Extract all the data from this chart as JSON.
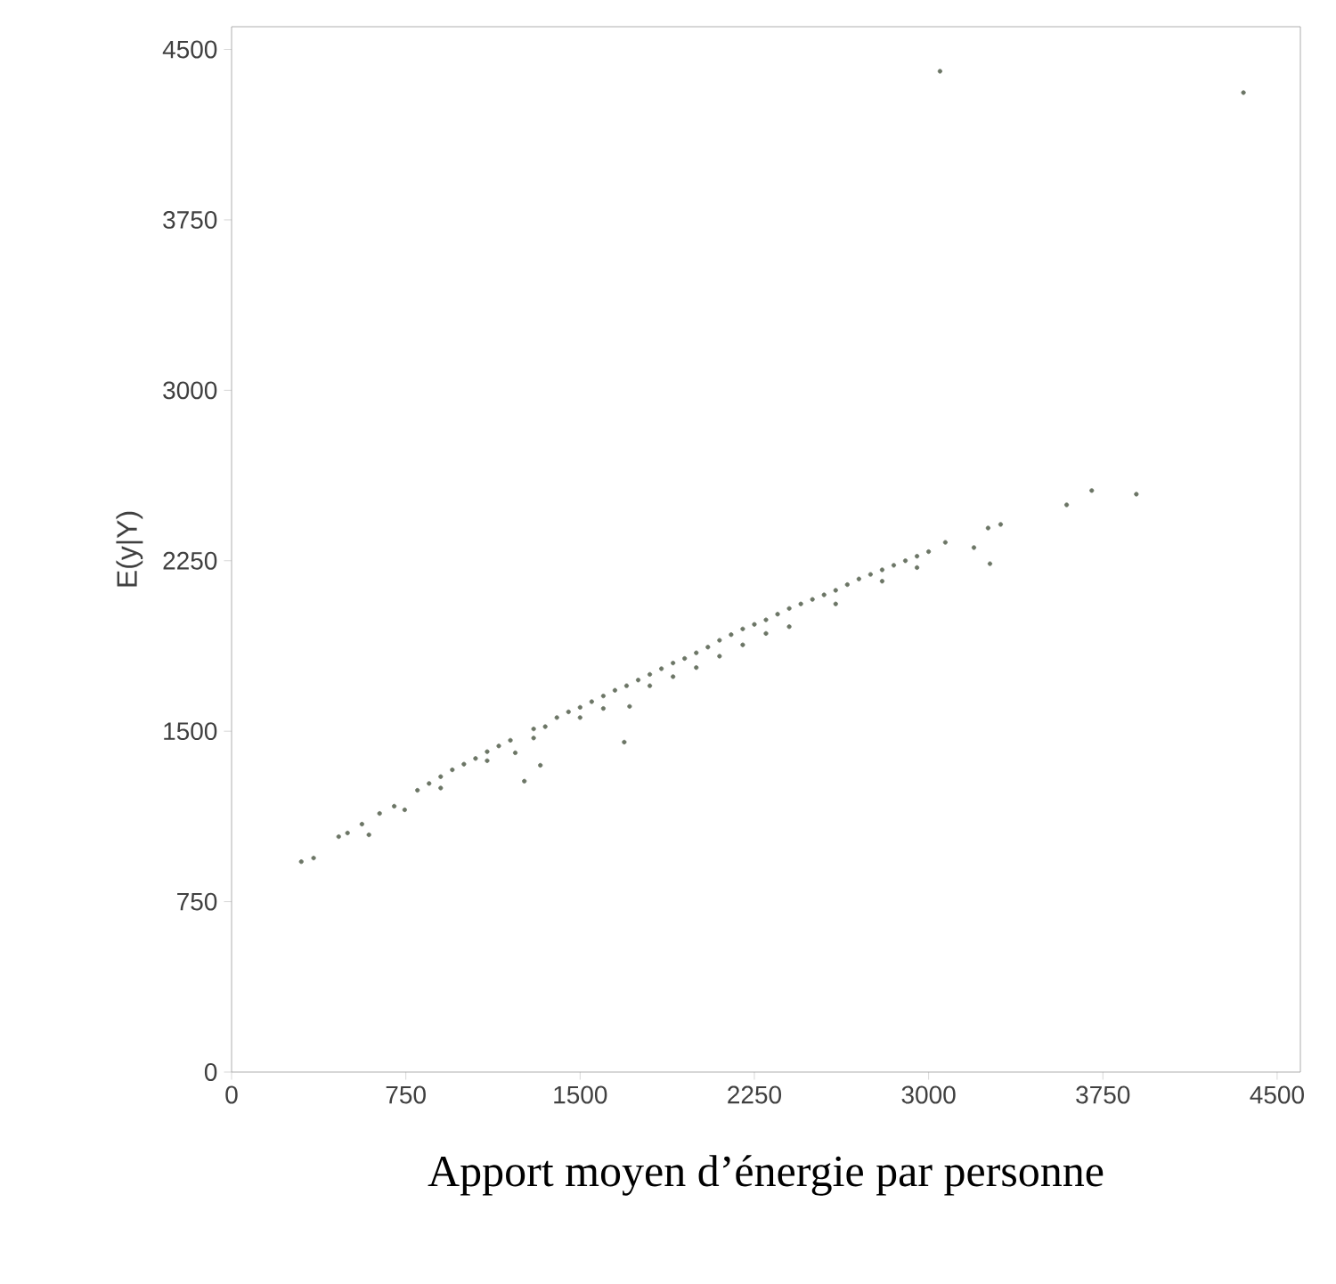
{
  "chart_data": {
    "type": "scatter",
    "xlabel": "Apport moyen d’énergie par personne",
    "ylabel": "E(y|Y)",
    "xlim": [
      0,
      4600
    ],
    "ylim": [
      0,
      4600
    ],
    "xticks": [
      0,
      750,
      1500,
      2250,
      3000,
      3750,
      4500
    ],
    "yticks": [
      0,
      750,
      1500,
      2250,
      3000,
      3750,
      4500
    ],
    "grid": false,
    "marker": "circle",
    "series": [
      {
        "color": "#6b7565",
        "x": [
          300,
          353,
          461,
          499,
          561,
          591,
          637,
          700,
          745,
          800,
          850,
          900,
          950,
          1000,
          1050,
          1100,
          1150,
          1200,
          1221,
          1260,
          1300,
          1329,
          1350,
          1400,
          1450,
          1500,
          1550,
          1600,
          1650,
          1690,
          1700,
          1713,
          1750,
          1800,
          1850,
          1900,
          1950,
          2000,
          2050,
          2100,
          2150,
          2200,
          2250,
          2300,
          2350,
          2400,
          2450,
          2500,
          2550,
          2600,
          2650,
          2700,
          2750,
          2800,
          2850,
          2900,
          2950,
          3000,
          3049,
          3072,
          3195,
          3256,
          3264,
          3310,
          3594,
          3702,
          3894,
          4355,
          900,
          1100,
          1300,
          1500,
          1600,
          1800,
          1900,
          2000,
          2100,
          2200,
          2300,
          2400,
          2600,
          2800,
          2950
        ],
        "values": [
          926,
          942,
          1036,
          1052,
          1091,
          1044,
          1138,
          1170,
          1154,
          1240,
          1270,
          1300,
          1330,
          1355,
          1380,
          1410,
          1435,
          1460,
          1405,
          1280,
          1510,
          1350,
          1520,
          1560,
          1585,
          1605,
          1630,
          1655,
          1680,
          1452,
          1700,
          1609,
          1725,
          1750,
          1775,
          1800,
          1820,
          1845,
          1870,
          1900,
          1925,
          1950,
          1970,
          1990,
          2015,
          2040,
          2060,
          2080,
          2100,
          2120,
          2145,
          2170,
          2190,
          2210,
          2230,
          2250,
          2270,
          2290,
          4404,
          2331,
          2308,
          2394,
          2237,
          2410,
          2496,
          2559,
          2543,
          4310,
          1250,
          1370,
          1470,
          1560,
          1600,
          1700,
          1740,
          1780,
          1830,
          1880,
          1930,
          1960,
          2060,
          2160,
          2220
        ]
      }
    ]
  }
}
